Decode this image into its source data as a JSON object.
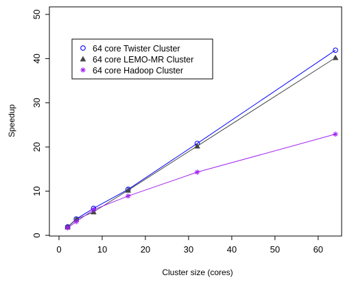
{
  "chart_data": {
    "type": "line",
    "title": "",
    "xlabel": "Cluster size (cores)",
    "ylabel": "Speedup",
    "xlim": [
      0,
      64
    ],
    "ylim": [
      0,
      50
    ],
    "xticks": [
      "0",
      "10",
      "20",
      "30",
      "40",
      "50",
      "60"
    ],
    "yticks": [
      "0",
      "10",
      "20",
      "30",
      "40",
      "50"
    ],
    "x": [
      2,
      4,
      8,
      16,
      32,
      64
    ],
    "legend_position": "top-left",
    "grid": false,
    "series": [
      {
        "name": "64 core Twister Cluster",
        "marker": "circle",
        "color": "#0000ff",
        "values": [
          1.9,
          3.7,
          6.1,
          10.4,
          20.8,
          41.9
        ]
      },
      {
        "name": "64 core LEMO-MR Cluster",
        "marker": "triangle",
        "color": "#444444",
        "values": [
          1.9,
          3.6,
          5.3,
          10.2,
          20.2,
          40.2
        ]
      },
      {
        "name": "64 core Hadoop Cluster",
        "marker": "asterisk",
        "color": "#a020f0",
        "values": [
          1.7,
          3.1,
          5.8,
          8.9,
          14.3,
          22.9
        ]
      }
    ]
  }
}
